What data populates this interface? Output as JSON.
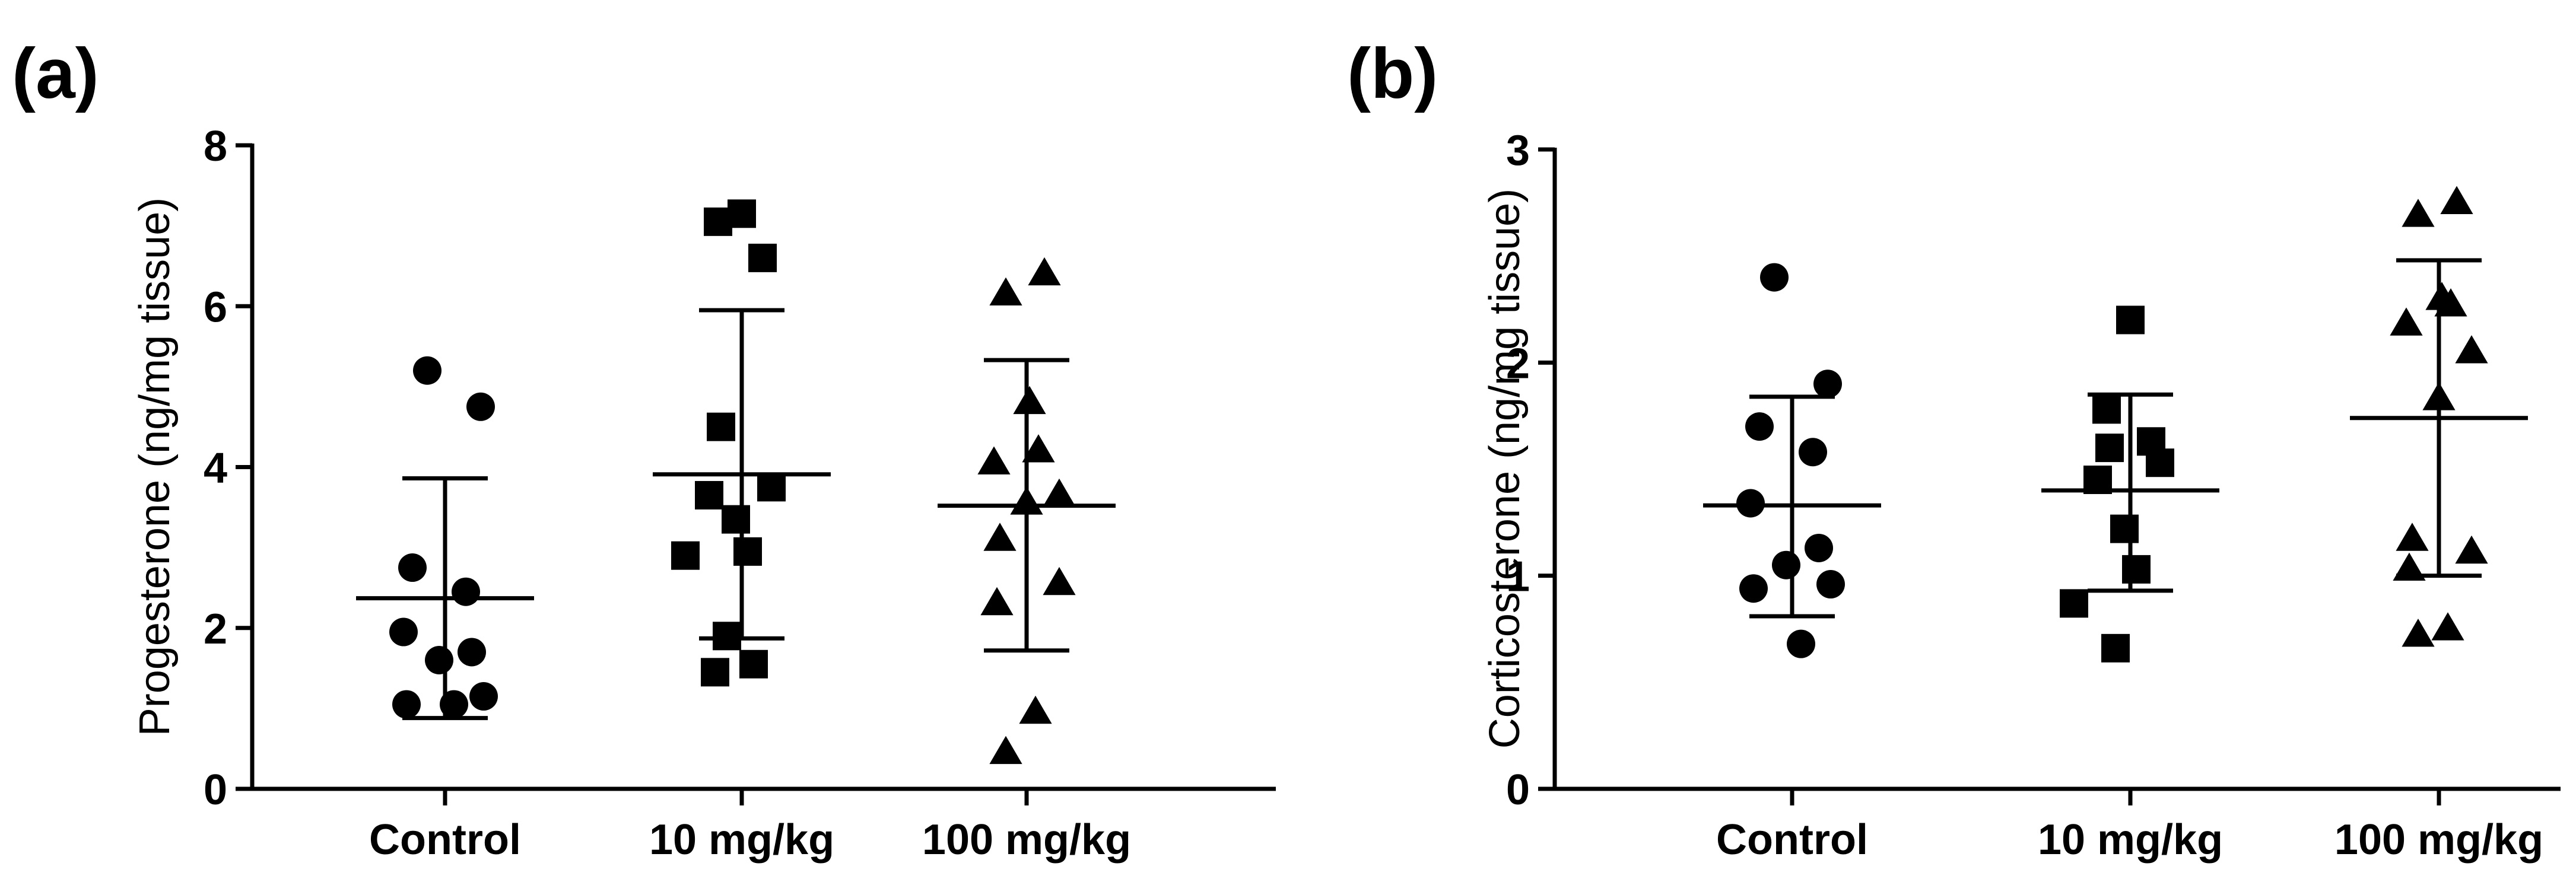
{
  "chart_data": [
    {
      "type": "scatter",
      "panel_label": "(a)",
      "title": "",
      "xlabel": "",
      "ylabel": "Progesterone (ng/mg tissue)",
      "ylim": [
        0,
        8
      ],
      "yticks": [
        0,
        2,
        4,
        6,
        8
      ],
      "ytick_labels": [
        "0",
        "2",
        "4",
        "6",
        "8"
      ],
      "categories": [
        "Control",
        "10 mg/kg",
        "100 mg/kg"
      ],
      "series": [
        {
          "name": "Control",
          "marker": "circle",
          "values": [
            5.2,
            4.75,
            2.75,
            2.45,
            1.95,
            1.7,
            1.6,
            1.15,
            1.05,
            1.05
          ],
          "mean": 2.37,
          "sd_low": 0.88,
          "sd_high": 3.86
        },
        {
          "name": "10 mg/kg",
          "marker": "square",
          "values": [
            7.15,
            7.05,
            6.6,
            4.5,
            3.75,
            3.65,
            3.35,
            2.95,
            2.9,
            1.9,
            1.55,
            1.45
          ],
          "mean": 3.91,
          "sd_low": 1.87,
          "sd_high": 5.95
        },
        {
          "name": "100 mg/kg",
          "marker": "triangle",
          "values": [
            6.4,
            6.15,
            4.8,
            4.2,
            4.05,
            3.65,
            3.55,
            3.1,
            2.55,
            2.3,
            0.95,
            0.45
          ],
          "mean": 3.52,
          "sd_low": 1.72,
          "sd_high": 5.33
        }
      ]
    },
    {
      "type": "scatter",
      "panel_label": "(b)",
      "title": "",
      "xlabel": "",
      "ylabel": "Corticosterone (ng/mg tissue)",
      "ylim": [
        0,
        3
      ],
      "yticks": [
        0,
        1,
        2,
        3
      ],
      "ytick_labels": [
        "0",
        "1",
        "2",
        "3"
      ],
      "categories": [
        "Control",
        "10 mg/kg",
        "100 mg/kg"
      ],
      "series": [
        {
          "name": "Control",
          "marker": "circle",
          "values": [
            2.4,
            1.9,
            1.7,
            1.58,
            1.34,
            1.13,
            1.05,
            0.96,
            0.94,
            0.68
          ],
          "mean": 1.33,
          "sd_low": 0.81,
          "sd_high": 1.84
        },
        {
          "name": "10 mg/kg",
          "marker": "square",
          "values": [
            2.2,
            1.78,
            1.63,
            1.6,
            1.53,
            1.45,
            1.22,
            1.03,
            0.87,
            0.66
          ],
          "mean": 1.4,
          "sd_low": 0.93,
          "sd_high": 1.85
        },
        {
          "name": "100 mg/kg",
          "marker": "triangle",
          "values": [
            2.75,
            2.69,
            2.3,
            2.27,
            2.18,
            2.05,
            1.83,
            1.17,
            1.11,
            1.03,
            0.75,
            0.72
          ],
          "mean": 1.74,
          "sd_low": 1.0,
          "sd_high": 2.48
        }
      ]
    }
  ]
}
